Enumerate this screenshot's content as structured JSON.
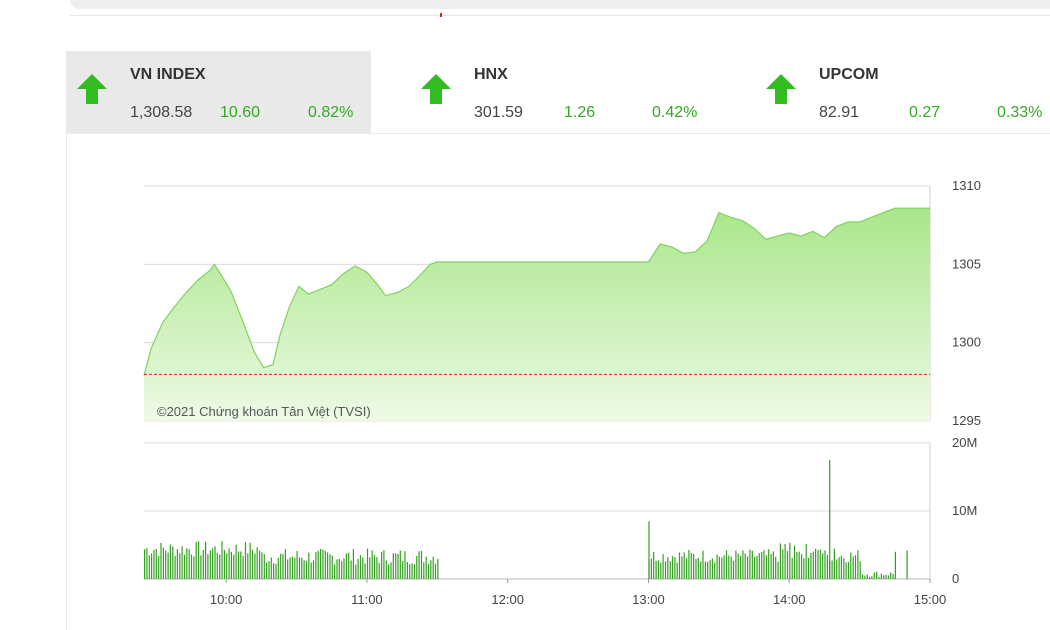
{
  "indices": [
    {
      "name": "VN INDEX",
      "price": "1,308.58",
      "change": "10.60",
      "percent": "0.82%",
      "active": true
    },
    {
      "name": "HNX",
      "price": "301.59",
      "change": "1.26",
      "percent": "0.42%",
      "active": false
    },
    {
      "name": "UPCOM",
      "price": "82.91",
      "change": "0.27",
      "percent": "0.33%",
      "active": false
    }
  ],
  "colors": {
    "up": "#33bb22",
    "line": "#7fd35a",
    "fill_top": "#a9e68a",
    "fill_bottom": "#eefae6",
    "reference": "#dd2222",
    "volume": "#33a11f"
  },
  "chart_data": {
    "type": "area",
    "copyright": "©2021 Chứng khoán Tân Việt (TVSI)",
    "x_ticks": [
      "10:00",
      "11:00",
      "12:00",
      "13:00",
      "14:00",
      "15:00"
    ],
    "x_range": [
      "9:25",
      "15:00"
    ],
    "price": {
      "ylim": [
        1295,
        1310
      ],
      "y_ticks": [
        "1310",
        "1305",
        "1300",
        "1295"
      ],
      "reference": 1297.98,
      "points": [
        [
          "9:25",
          1297.9
        ],
        [
          "9:28",
          1299.6
        ],
        [
          "9:33",
          1301.3
        ],
        [
          "9:38",
          1302.3
        ],
        [
          "9:43",
          1303.2
        ],
        [
          "9:48",
          1304.0
        ],
        [
          "9:53",
          1304.6
        ],
        [
          "9:55",
          1305.0
        ],
        [
          "9:58",
          1304.3
        ],
        [
          "10:02",
          1303.3
        ],
        [
          "10:07",
          1301.4
        ],
        [
          "10:12",
          1299.4
        ],
        [
          "10:16",
          1298.4
        ],
        [
          "10:20",
          1298.6
        ],
        [
          "10:23",
          1300.5
        ],
        [
          "10:27",
          1302.3
        ],
        [
          "10:31",
          1303.6
        ],
        [
          "10:35",
          1303.1
        ],
        [
          "10:40",
          1303.4
        ],
        [
          "10:45",
          1303.7
        ],
        [
          "10:50",
          1304.4
        ],
        [
          "10:55",
          1304.9
        ],
        [
          "11:00",
          1304.5
        ],
        [
          "11:04",
          1303.8
        ],
        [
          "11:08",
          1303.0
        ],
        [
          "11:13",
          1303.2
        ],
        [
          "11:18",
          1303.6
        ],
        [
          "11:22",
          1304.2
        ],
        [
          "11:27",
          1305.0
        ],
        [
          "11:30",
          1305.15
        ],
        [
          "12:00",
          1305.15
        ],
        [
          "13:00",
          1305.15
        ],
        [
          "13:05",
          1306.3
        ],
        [
          "13:10",
          1306.1
        ],
        [
          "13:15",
          1305.7
        ],
        [
          "13:20",
          1305.8
        ],
        [
          "13:25",
          1306.5
        ],
        [
          "13:30",
          1308.3
        ],
        [
          "13:35",
          1308.0
        ],
        [
          "13:40",
          1307.8
        ],
        [
          "13:45",
          1307.3
        ],
        [
          "13:50",
          1306.6
        ],
        [
          "13:55",
          1306.8
        ],
        [
          "14:00",
          1307.0
        ],
        [
          "14:05",
          1306.8
        ],
        [
          "14:10",
          1307.1
        ],
        [
          "14:15",
          1306.7
        ],
        [
          "14:20",
          1307.4
        ],
        [
          "14:25",
          1307.7
        ],
        [
          "14:30",
          1307.7
        ],
        [
          "14:45",
          1308.58
        ],
        [
          "15:00",
          1308.58
        ]
      ]
    },
    "volume": {
      "ylim": [
        0,
        20
      ],
      "unit": "M",
      "y_ticks": [
        "20M",
        "10M",
        "0"
      ],
      "sessions": [
        [
          "9:25",
          "11:30"
        ],
        [
          "13:00",
          "14:30"
        ]
      ],
      "spikes": [
        [
          "13:00",
          8.5
        ],
        [
          "14:17",
          17.5
        ],
        [
          "14:19",
          4.5
        ]
      ],
      "atc": [
        [
          "14:45",
          4.0
        ],
        [
          "14:50",
          4.2
        ]
      ]
    }
  }
}
